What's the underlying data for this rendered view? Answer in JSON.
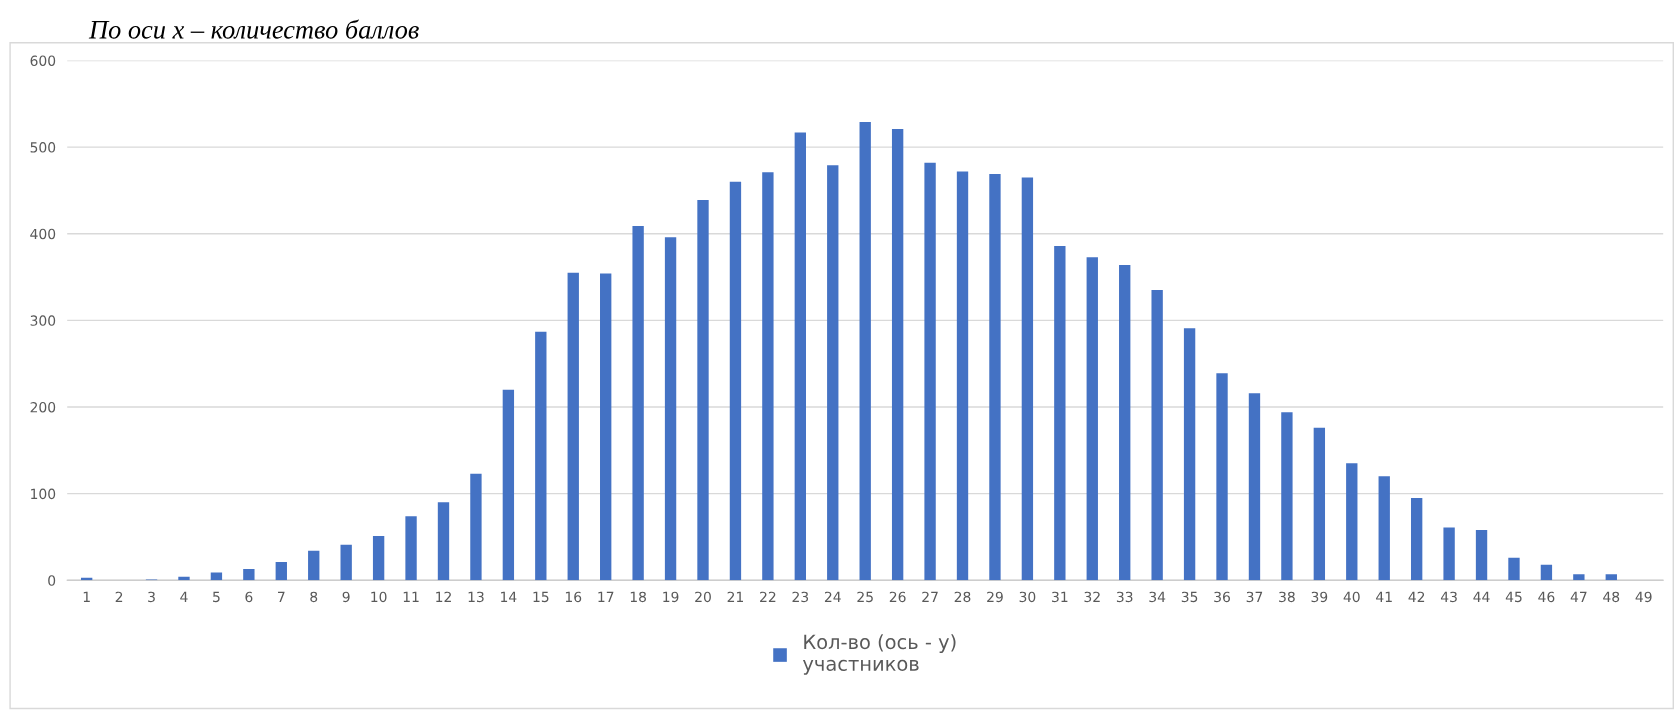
{
  "chart_data": {
    "type": "bar",
    "title": "По оси х – количество баллов",
    "categories": [
      "1",
      "2",
      "3",
      "4",
      "5",
      "6",
      "7",
      "8",
      "9",
      "10",
      "11",
      "12",
      "13",
      "14",
      "15",
      "16",
      "17",
      "18",
      "19",
      "20",
      "21",
      "22",
      "23",
      "24",
      "25",
      "26",
      "27",
      "28",
      "29",
      "30",
      "31",
      "32",
      "33",
      "34",
      "35",
      "36",
      "37",
      "38",
      "39",
      "40",
      "41",
      "42",
      "43",
      "44",
      "45",
      "46",
      "47",
      "48",
      "49"
    ],
    "series": [
      {
        "name": "Кол-во (ось - у)\nучастников",
        "color": "#4472c4",
        "values": [
          3,
          0,
          1,
          4,
          9,
          13,
          21,
          34,
          41,
          51,
          74,
          90,
          123,
          220,
          287,
          355,
          354,
          409,
          396,
          439,
          460,
          471,
          517,
          479,
          529,
          521,
          482,
          472,
          469,
          465,
          386,
          373,
          364,
          335,
          291,
          239,
          216,
          194,
          176,
          135,
          120,
          95,
          61,
          58,
          26,
          18,
          7,
          7,
          0
        ]
      }
    ],
    "ylim": [
      0,
      600
    ],
    "yticks": [
      0,
      100,
      200,
      300,
      400,
      500,
      600
    ],
    "grid": "y",
    "legend": "bottom"
  }
}
